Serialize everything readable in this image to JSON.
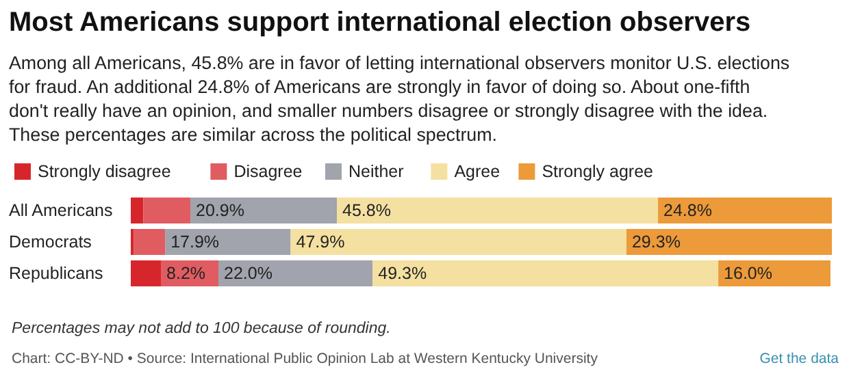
{
  "chart_data": {
    "type": "bar",
    "orientation": "horizontal",
    "stacked": true,
    "title": "Most Americans support international election observers",
    "subtitle": "Among all Americans, 45.8% are in favor of letting international observers monitor U.S. elections for fraud. An additional 24.8% of Americans are strongly in favor of doing so. About one-fifth don't really have an opinion, and smaller numbers disagree or strongly disagree with the idea. These percentages are similar across the political spectrum.",
    "categories": [
      "All Americans",
      "Democrats",
      "Republicans"
    ],
    "xlim": [
      0,
      100
    ],
    "legend": "top left",
    "series": [
      {
        "name": "Strongly disagree",
        "color": "#d7262b",
        "values": [
          1.8,
          0.4,
          4.3
        ],
        "value_labels": [
          null,
          null,
          null
        ]
      },
      {
        "name": "Disagree",
        "color": "#e05c61",
        "values": [
          6.7,
          4.5,
          8.2
        ],
        "value_labels": [
          null,
          null,
          "8.2%"
        ]
      },
      {
        "name": "Neither",
        "color": "#a1a3ad",
        "values": [
          20.9,
          17.9,
          22.0
        ],
        "value_labels": [
          "20.9%",
          "17.9%",
          "22.0%"
        ]
      },
      {
        "name": "Agree",
        "color": "#f4e0a0",
        "values": [
          45.8,
          47.9,
          49.3
        ],
        "value_labels": [
          "45.8%",
          "47.9%",
          "49.3%"
        ]
      },
      {
        "name": "Strongly agree",
        "color": "#ec9a3a",
        "values": [
          24.8,
          29.3,
          16.0
        ],
        "value_labels": [
          "24.8%",
          "29.3%",
          "16.0%"
        ]
      }
    ],
    "annotations": [
      "Percentages may not add to 100 because of rounding.",
      "Chart: CC-BY-ND • Source: International Public Opinion Lab at Western Kentucky University",
      "Get the data"
    ]
  }
}
